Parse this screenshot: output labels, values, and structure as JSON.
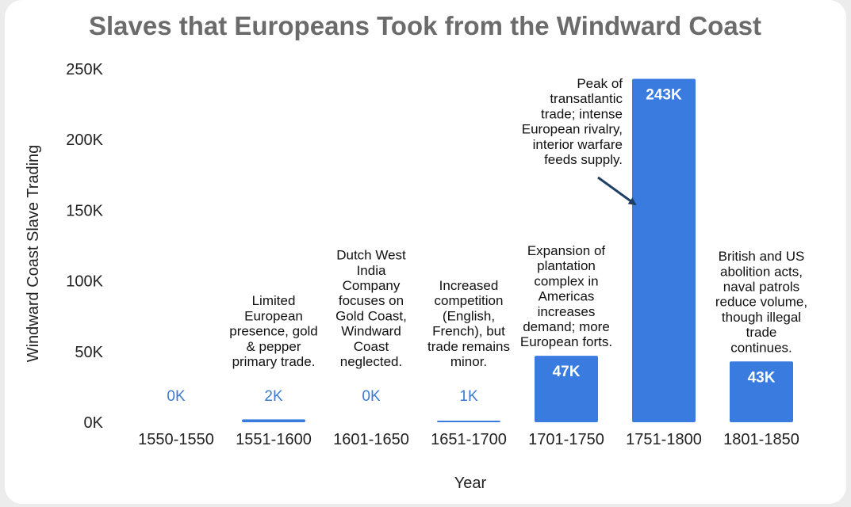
{
  "colors": {
    "bar": "#3a7be0",
    "title": "#6b6b6b",
    "value_outside": "#3d7bd1",
    "arrow": "#1f3f66"
  },
  "chart_data": {
    "type": "bar",
    "title": "Slaves that Europeans Took from the Windward Coast",
    "xlabel": "Year",
    "ylabel": "Windward Coast Slave Trading",
    "ylim": [
      0,
      250000
    ],
    "yticks": [
      {
        "value": 0,
        "label": "0K"
      },
      {
        "value": 50000,
        "label": "50K"
      },
      {
        "value": 100000,
        "label": "100K"
      },
      {
        "value": 150000,
        "label": "150K"
      },
      {
        "value": 200000,
        "label": "200K"
      },
      {
        "value": 250000,
        "label": "250K"
      }
    ],
    "categories": [
      "1550-1550",
      "1551-1600",
      "1601-1650",
      "1651-1700",
      "1701-1750",
      "1751-1800",
      "1801-1850"
    ],
    "values": [
      0,
      2000,
      0,
      1000,
      47000,
      243000,
      43000
    ],
    "value_labels": [
      "0K",
      "2K",
      "0K",
      "1K",
      "47K",
      "243K",
      "43K"
    ],
    "grid": false,
    "annotations": [
      {
        "category": "1550-1550",
        "lines": []
      },
      {
        "category": "1551-1600",
        "lines": [
          "Limited",
          "European",
          "presence, gold",
          "& pepper",
          "primary trade."
        ]
      },
      {
        "category": "1601-1650",
        "lines": [
          "Dutch West",
          "India",
          "Company",
          "focuses on",
          "Gold Coast,",
          "Windward",
          "Coast",
          "neglected."
        ]
      },
      {
        "category": "1651-1700",
        "lines": [
          "Increased",
          "competition",
          "(English,",
          "French), but",
          "trade remains",
          "minor."
        ]
      },
      {
        "category": "1701-1750",
        "lines": [
          "Expansion of",
          "plantation",
          "complex in",
          "Americas",
          "increases",
          "demand; more",
          "European forts."
        ]
      },
      {
        "category": "1751-1800",
        "lines": [
          "Peak of",
          "transatlantic",
          "trade; intense",
          "European rivalry,",
          "interior warfare",
          "feeds supply."
        ],
        "arrow": true
      },
      {
        "category": "1801-1850",
        "lines": [
          "British and US",
          "abolition acts,",
          "naval patrols",
          "reduce volume,",
          "though illegal",
          "trade",
          "continues."
        ]
      }
    ]
  }
}
